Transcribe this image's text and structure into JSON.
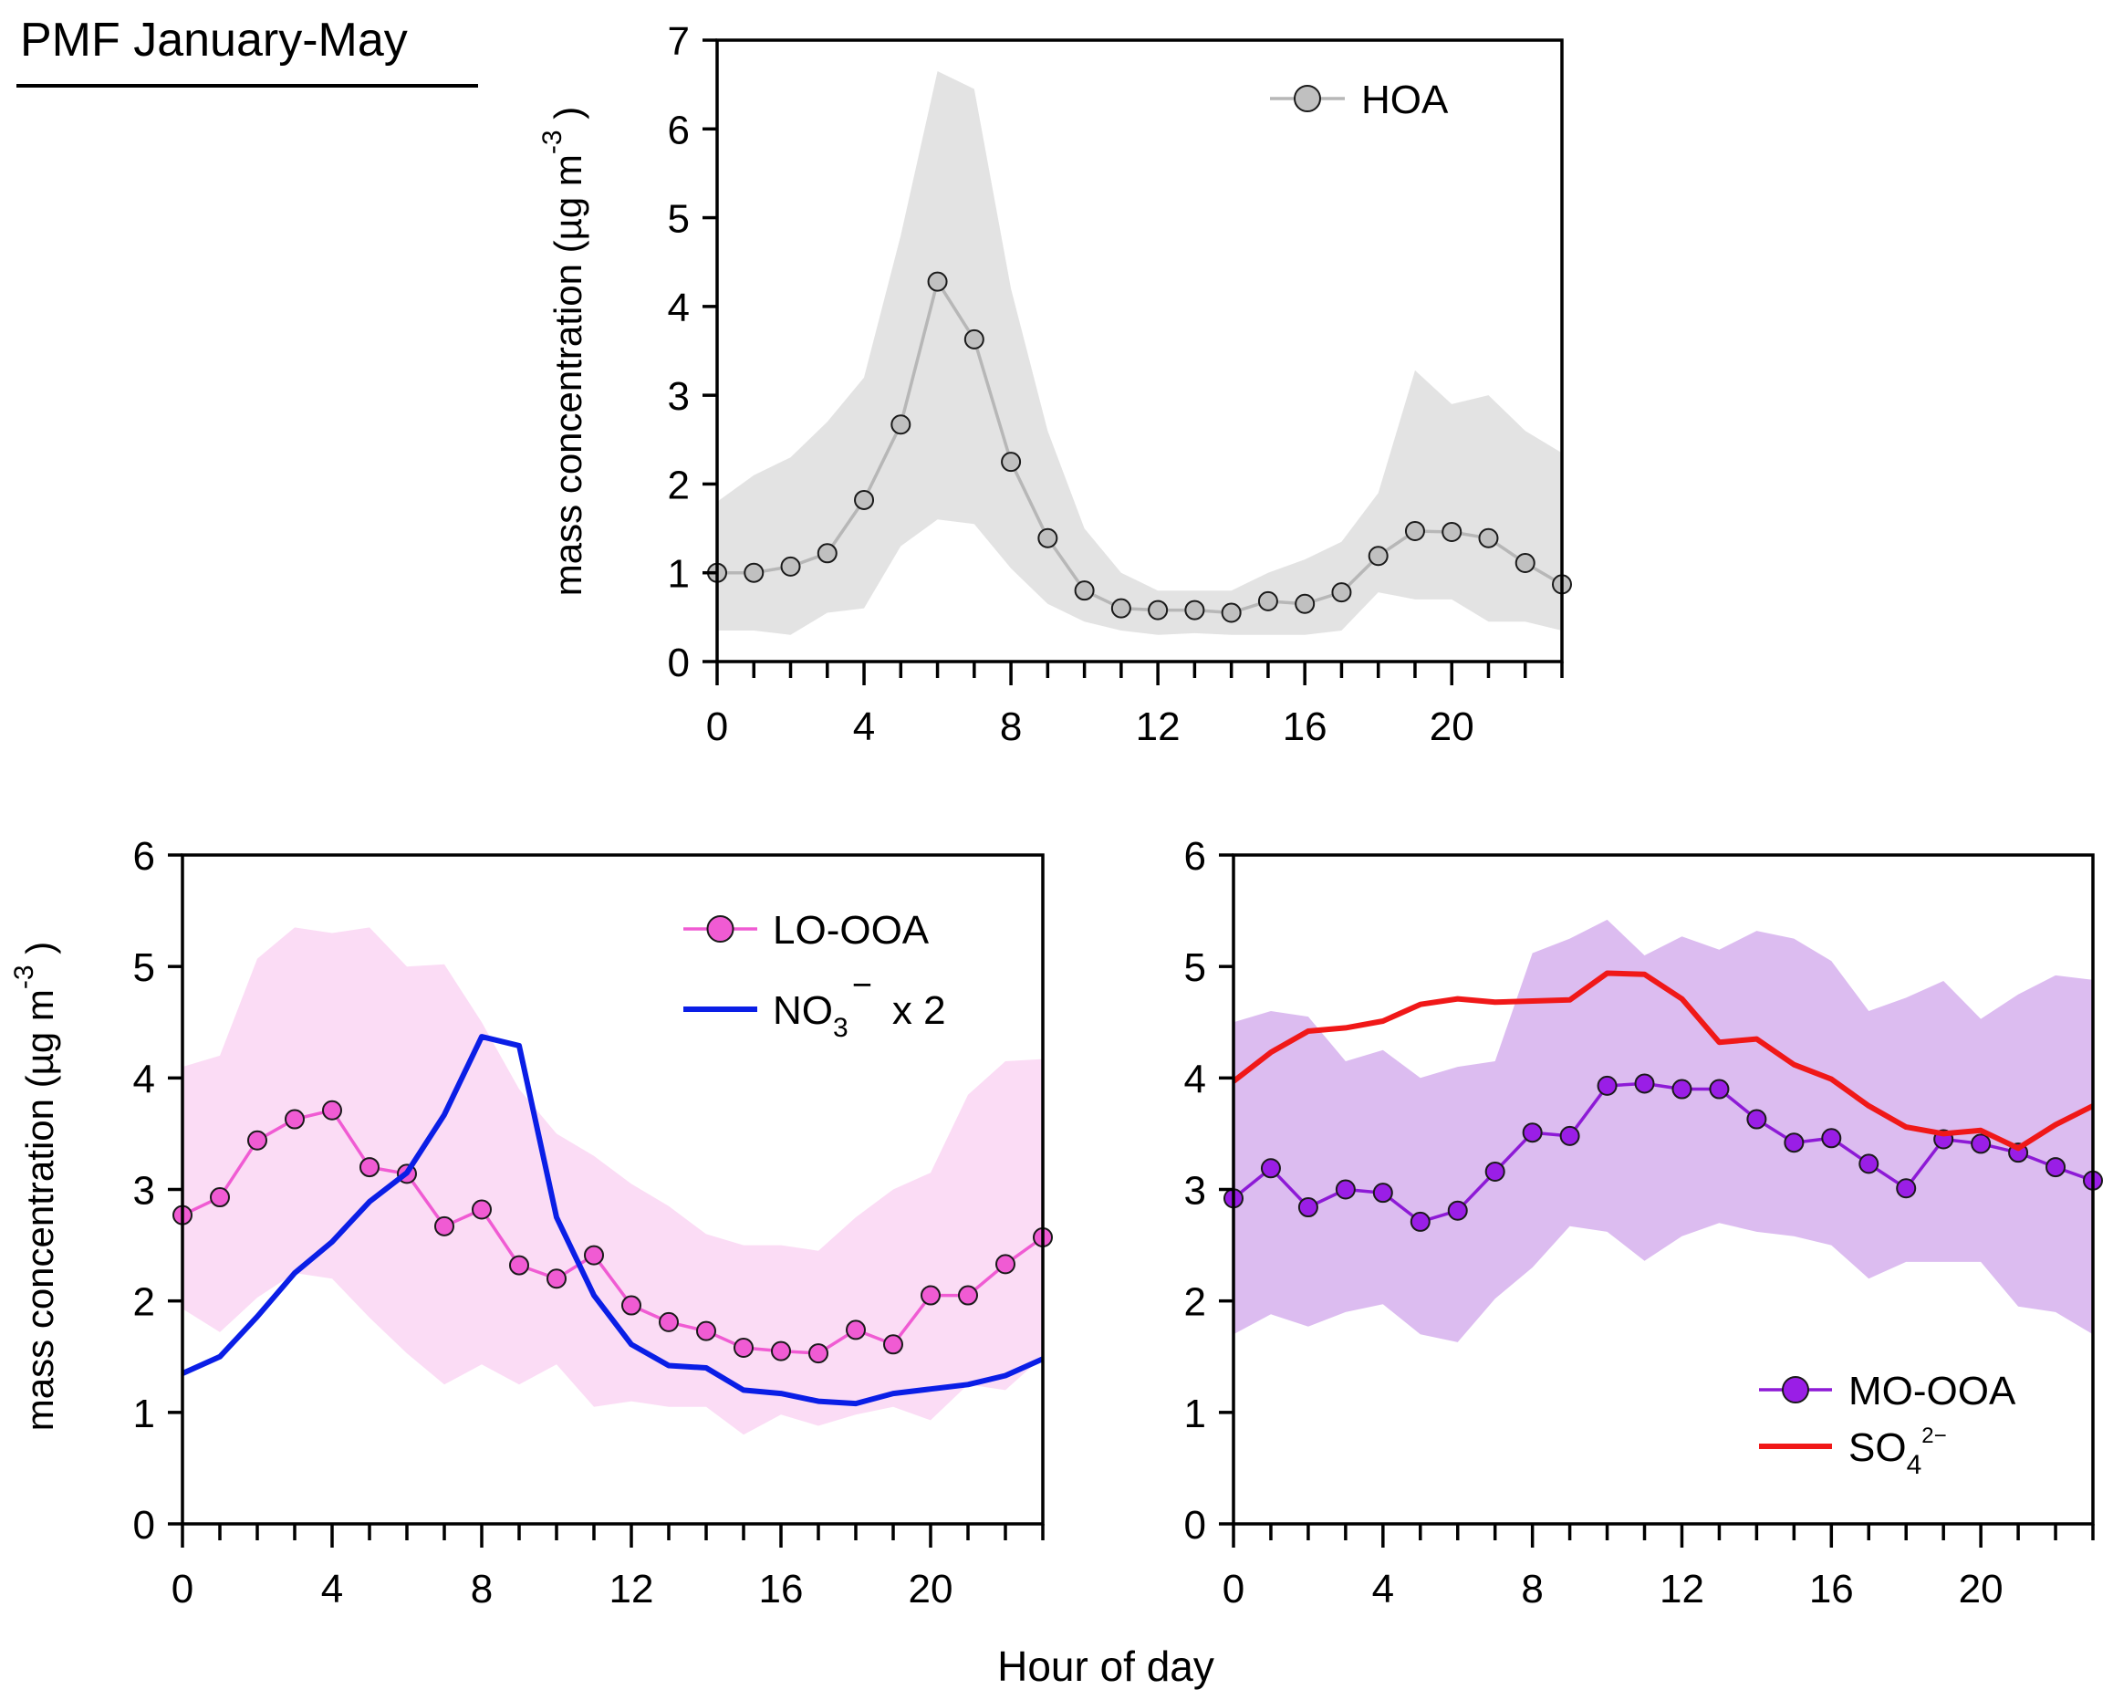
{
  "figure_title": "PMF January-May",
  "xlabel_shared": "Hour of day",
  "chart_data": [
    {
      "type": "line",
      "id": "hoa",
      "title": "",
      "xlabel": "",
      "ylabel": "mass concentration (µg m",
      "ylabel_sup": "-3",
      "ylabel_close": ")",
      "xlim": [
        0,
        23
      ],
      "ylim": [
        0,
        7
      ],
      "xticks": [
        0,
        4,
        8,
        12,
        16,
        20
      ],
      "yticks": [
        0,
        1,
        2,
        3,
        4,
        5,
        6,
        7
      ],
      "x": [
        0,
        1,
        2,
        3,
        4,
        5,
        6,
        7,
        8,
        9,
        10,
        11,
        12,
        13,
        14,
        15,
        16,
        17,
        18,
        19,
        20,
        21,
        22,
        23
      ],
      "band": {
        "color": "#e3e3e3",
        "upper": [
          1.8,
          2.1,
          2.3,
          2.7,
          3.2,
          4.8,
          6.65,
          6.45,
          4.2,
          2.6,
          1.5,
          1.0,
          0.8,
          0.8,
          0.8,
          1.0,
          1.15,
          1.35,
          1.9,
          3.28,
          2.9,
          3.0,
          2.6,
          2.35
        ],
        "lower": [
          0.35,
          0.35,
          0.3,
          0.55,
          0.6,
          1.3,
          1.6,
          1.55,
          1.05,
          0.65,
          0.45,
          0.35,
          0.3,
          0.32,
          0.3,
          0.3,
          0.3,
          0.35,
          0.78,
          0.7,
          0.7,
          0.45,
          0.45,
          0.35
        ]
      },
      "series": [
        {
          "name": "HOA",
          "style": "line-marker",
          "color": "#b7b7b7",
          "marker_fill": "#c0c0c0",
          "values": [
            1.0,
            1.0,
            1.07,
            1.22,
            1.82,
            2.67,
            4.28,
            3.63,
            2.25,
            1.39,
            0.8,
            0.6,
            0.58,
            0.58,
            0.55,
            0.68,
            0.65,
            0.78,
            1.19,
            1.47,
            1.46,
            1.39,
            1.11,
            0.87
          ]
        }
      ],
      "legend": {
        "position": "top-right",
        "entries": [
          {
            "label": "HOA",
            "sub": "",
            "sup": "",
            "suffix": ""
          }
        ]
      }
    },
    {
      "type": "line",
      "id": "lo-ooa",
      "title": "",
      "xlabel": "",
      "ylabel": "mass concentration (µg m",
      "ylabel_sup": "-3",
      "ylabel_close": ")",
      "xlim": [
        0,
        23
      ],
      "ylim": [
        0,
        6
      ],
      "xticks": [
        0,
        4,
        8,
        12,
        16,
        20
      ],
      "yticks": [
        0,
        1,
        2,
        3,
        4,
        5,
        6
      ],
      "x": [
        0,
        1,
        2,
        3,
        4,
        5,
        6,
        7,
        8,
        9,
        10,
        11,
        12,
        13,
        14,
        15,
        16,
        17,
        18,
        19,
        20,
        21,
        22,
        23
      ],
      "band": {
        "color": "#fbdcf5",
        "upper": [
          4.1,
          4.2,
          5.07,
          5.35,
          5.3,
          5.35,
          5.0,
          5.02,
          4.5,
          3.9,
          3.5,
          3.3,
          3.05,
          2.85,
          2.6,
          2.5,
          2.5,
          2.45,
          2.75,
          3.0,
          3.15,
          3.85,
          4.15,
          4.17
        ],
        "lower": [
          1.93,
          1.72,
          2.03,
          2.25,
          2.2,
          1.85,
          1.53,
          1.25,
          1.43,
          1.25,
          1.43,
          1.05,
          1.1,
          1.05,
          1.05,
          0.8,
          0.98,
          0.88,
          0.98,
          1.05,
          0.93,
          1.25,
          1.2,
          1.5
        ]
      },
      "series": [
        {
          "name": "LO-OOA",
          "style": "line-marker",
          "color": "#f05bd3",
          "marker_fill": "#f05bd3",
          "values": [
            2.77,
            2.93,
            3.44,
            3.63,
            3.71,
            3.2,
            3.14,
            2.67,
            2.82,
            2.32,
            2.2,
            2.41,
            1.96,
            1.81,
            1.73,
            1.58,
            1.55,
            1.53,
            1.74,
            1.61,
            2.05,
            2.05,
            2.33,
            2.57
          ]
        },
        {
          "name": "NO3 x 2",
          "style": "line",
          "color": "#0a1ee6",
          "values": [
            1.35,
            1.5,
            1.86,
            2.25,
            2.53,
            2.89,
            3.15,
            3.67,
            4.37,
            4.29,
            2.75,
            2.05,
            1.61,
            1.42,
            1.4,
            1.2,
            1.17,
            1.1,
            1.08,
            1.17,
            1.21,
            1.25,
            1.33,
            1.48
          ]
        }
      ],
      "legend": {
        "position": "top-right",
        "entries": [
          {
            "label": "LO-OOA",
            "sub": "",
            "sup": "",
            "suffix": ""
          },
          {
            "label": "NO",
            "sub": "3",
            "sup": "−",
            "suffix": "x  2"
          }
        ]
      }
    },
    {
      "type": "line",
      "id": "mo-ooa",
      "title": "",
      "xlabel": "Hour of day",
      "ylabel": "",
      "ylabel_sup": "",
      "ylabel_close": "",
      "xlim": [
        0,
        23
      ],
      "ylim": [
        0,
        6
      ],
      "xticks": [
        0,
        4,
        8,
        12,
        16,
        20
      ],
      "yticks": [
        0,
        1,
        2,
        3,
        4,
        5,
        6
      ],
      "x": [
        0,
        1,
        2,
        3,
        4,
        5,
        6,
        7,
        8,
        9,
        10,
        11,
        12,
        13,
        14,
        15,
        16,
        17,
        18,
        19,
        20,
        21,
        22,
        23
      ],
      "band": {
        "color": "#dcbcf0",
        "upper": [
          4.5,
          4.6,
          4.55,
          4.15,
          4.25,
          4.0,
          4.1,
          4.15,
          5.12,
          5.25,
          5.42,
          5.1,
          5.27,
          5.15,
          5.32,
          5.25,
          5.05,
          4.6,
          4.72,
          4.87,
          4.53,
          4.75,
          4.92,
          4.88
        ],
        "lower": [
          1.7,
          1.88,
          1.77,
          1.9,
          1.97,
          1.7,
          1.63,
          2.02,
          2.3,
          2.67,
          2.62,
          2.36,
          2.58,
          2.7,
          2.62,
          2.58,
          2.5,
          2.2,
          2.35,
          2.35,
          2.35,
          1.95,
          1.9,
          1.7
        ]
      },
      "series": [
        {
          "name": "MO-OOA",
          "style": "line-marker",
          "color": "#8d1ad6",
          "marker_fill": "#9a1ee6",
          "values": [
            2.92,
            3.19,
            2.84,
            3.0,
            2.97,
            2.71,
            2.81,
            3.16,
            3.51,
            3.48,
            3.93,
            3.95,
            3.9,
            3.9,
            3.63,
            3.42,
            3.46,
            3.23,
            3.01,
            3.45,
            3.41,
            3.33,
            3.2,
            3.08
          ]
        },
        {
          "name": "SO4 2-",
          "style": "line",
          "color": "#f01818",
          "values": [
            3.97,
            4.23,
            4.42,
            4.45,
            4.51,
            4.66,
            4.71,
            4.68,
            4.69,
            4.7,
            4.94,
            4.93,
            4.71,
            4.32,
            4.35,
            4.12,
            3.99,
            3.75,
            3.56,
            3.5,
            3.53,
            3.37,
            3.58,
            3.75
          ]
        }
      ],
      "legend": {
        "position": "bottom-right",
        "entries": [
          {
            "label": "MO-OOA",
            "sub": "",
            "sup": "",
            "suffix": ""
          },
          {
            "label": "SO",
            "sub": "4",
            "sup": "2−",
            "suffix": ""
          }
        ]
      }
    }
  ]
}
